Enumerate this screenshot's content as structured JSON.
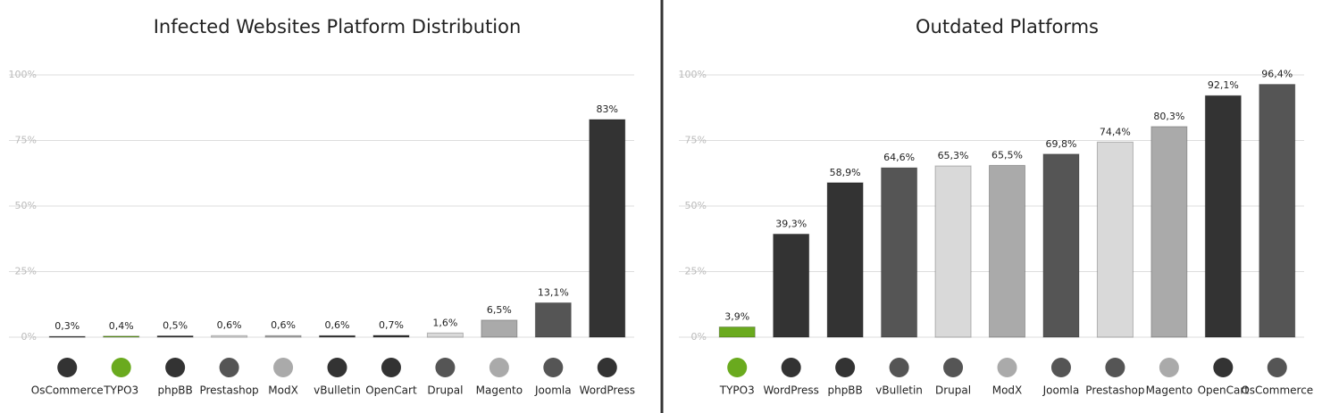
{
  "chart_data": [
    {
      "type": "bar",
      "title": "Infected Websites Platform Distribution",
      "categories": [
        "OsCommerce",
        "TYPO3",
        "phpBB",
        "Prestashop",
        "ModX",
        "vBulletin",
        "OpenCart",
        "Drupal",
        "Magento",
        "Joomla",
        "WordPress"
      ],
      "values": [
        0.3,
        0.4,
        0.5,
        0.6,
        0.6,
        0.6,
        0.7,
        1.6,
        6.5,
        13.1,
        83
      ],
      "value_labels": [
        "0,3%",
        "0,4%",
        "0,5%",
        "0,6%",
        "0,6%",
        "0,6%",
        "0,7%",
        "1,6%",
        "6,5%",
        "13,1%",
        "83%"
      ],
      "colors": [
        "#333333",
        "#6aaa1e",
        "#333333",
        "#d9d9d9",
        "#aaaaaa",
        "#333333",
        "#333333",
        "#d9d9d9",
        "#aaaaaa",
        "#555555",
        "#333333"
      ],
      "ylim": [
        0,
        100
      ],
      "yticks": [
        {
          "value": 0,
          "label": "0%"
        },
        {
          "value": 25,
          "label": "25%"
        },
        {
          "value": 50,
          "label": "50%"
        },
        {
          "value": 75,
          "label": "75%"
        },
        {
          "value": 100,
          "label": "100%"
        }
      ],
      "grid": true
    },
    {
      "type": "bar",
      "title": "Outdated Platforms",
      "categories": [
        "TYPO3",
        "WordPress",
        "phpBB",
        "vBulletin",
        "Drupal",
        "ModX",
        "Joomla",
        "Prestashop",
        "Magento",
        "OpenCart",
        "OsCommerce"
      ],
      "values": [
        3.9,
        39.3,
        58.9,
        64.6,
        65.3,
        65.5,
        69.8,
        74.4,
        80.3,
        92.1,
        96.4
      ],
      "value_labels": [
        "3,9%",
        "39,3%",
        "58,9%",
        "64,6%",
        "65,3%",
        "65,5%",
        "69,8%",
        "74,4%",
        "80,3%",
        "92,1%",
        "96,4%"
      ],
      "colors": [
        "#6aaa1e",
        "#333333",
        "#333333",
        "#555555",
        "#d9d9d9",
        "#aaaaaa",
        "#555555",
        "#d9d9d9",
        "#aaaaaa",
        "#333333",
        "#555555"
      ],
      "ylim": [
        0,
        100
      ],
      "yticks": [
        {
          "value": 0,
          "label": "0%"
        },
        {
          "value": 25,
          "label": "25%"
        },
        {
          "value": 50,
          "label": "50%"
        },
        {
          "value": 75,
          "label": "75%"
        },
        {
          "value": 100,
          "label": "100%"
        }
      ],
      "grid": true
    }
  ]
}
